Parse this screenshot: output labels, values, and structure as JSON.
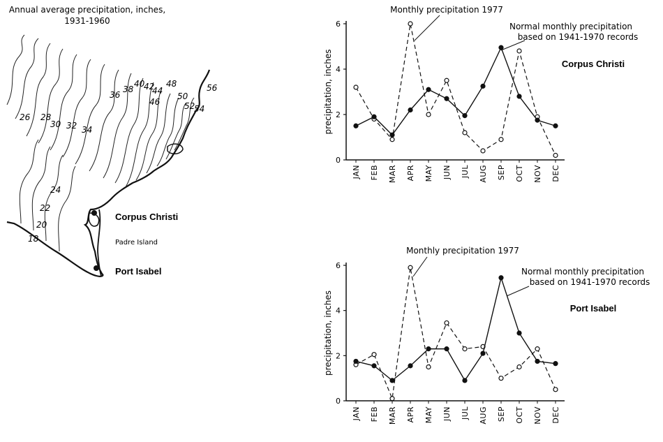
{
  "map": {
    "title_line1": "Annual average precipitation, inches,",
    "title_line2": "1931-1960",
    "contour_labels": [
      "26",
      "28",
      "30",
      "32",
      "34",
      "36",
      "38",
      "40",
      "42",
      "44",
      "46",
      "48",
      "50",
      "52",
      "54",
      "56",
      "24",
      "22",
      "20",
      "18"
    ],
    "place_corpus": "Corpus Christi",
    "place_padre": "Padre Island",
    "place_port": "Port Isabel"
  },
  "chart_data": [
    {
      "type": "line",
      "station": "Corpus Christi",
      "annotation_monthly": "Monthly precipitation 1977",
      "annotation_normal_line1": "Normal monthly precipitation",
      "annotation_normal_line2": "based on 1941-1970 records",
      "ylabel": "precipitation, inches",
      "ylim": [
        0,
        6
      ],
      "yticks": [
        "0",
        "2",
        "4",
        "6"
      ],
      "categories": [
        "JAN",
        "FEB",
        "MAR",
        "APR",
        "MAY",
        "JUN",
        "JUL",
        "AUG",
        "SEP",
        "OCT",
        "NOV",
        "DEC"
      ],
      "series": [
        {
          "style": "dashed-open-circle",
          "values": [
            3.2,
            1.8,
            0.9,
            6.0,
            2.0,
            3.5,
            1.2,
            0.4,
            0.9,
            4.8,
            1.9,
            0.2
          ]
        },
        {
          "style": "solid-filled-circle",
          "values": [
            1.5,
            1.9,
            1.1,
            2.2,
            3.1,
            2.7,
            1.95,
            3.25,
            4.95,
            2.8,
            1.75,
            1.5
          ]
        }
      ]
    },
    {
      "type": "line",
      "station": "Port Isabel",
      "annotation_monthly": "Monthly precipitation 1977",
      "annotation_normal_line1": "Normal monthly precipitation",
      "annotation_normal_line2": "based on 1941-1970 records",
      "ylabel": "precipitation, inches",
      "ylim": [
        0,
        6
      ],
      "yticks": [
        "0",
        "2",
        "4",
        "6"
      ],
      "categories": [
        "JAN",
        "FEB",
        "MAR",
        "APR",
        "MAY",
        "JUN",
        "JUL",
        "AUG",
        "SEP",
        "OCT",
        "NOV",
        "DEC"
      ],
      "series": [
        {
          "style": "dashed-open-circle",
          "values": [
            1.6,
            2.05,
            0.1,
            5.9,
            1.5,
            3.45,
            2.3,
            2.4,
            1.0,
            1.5,
            2.3,
            0.5
          ]
        },
        {
          "style": "solid-filled-circle",
          "values": [
            1.75,
            1.55,
            0.9,
            1.55,
            2.3,
            2.3,
            0.9,
            2.1,
            5.45,
            3.0,
            1.75,
            1.65
          ]
        }
      ]
    }
  ]
}
